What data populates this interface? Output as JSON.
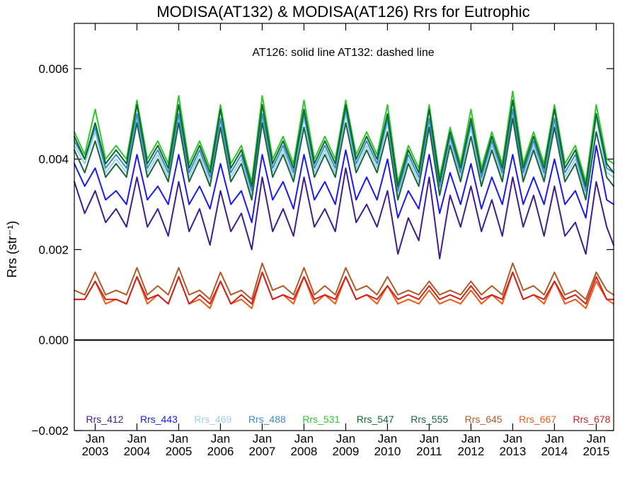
{
  "chart_data": {
    "type": "line",
    "title": "MODISA(AT132) & MODISA(AT126)  Rrs for Eutrophic",
    "annotation": "AT126: solid line   AT132: dashed line",
    "ylabel": "Rrs (str⁻¹)",
    "ylim": [
      -0.002,
      0.007
    ],
    "yticks": [
      -0.002,
      0.0,
      0.002,
      0.004,
      0.006
    ],
    "ytick_labels": [
      "−0.002",
      "0.000",
      "0.002",
      "0.004",
      "0.006"
    ],
    "xlim": [
      "2002-07",
      "2015-06"
    ],
    "xticks": [
      {
        "date": "2003-01",
        "month": "Jan",
        "year": "2003"
      },
      {
        "date": "2004-01",
        "month": "Jan",
        "year": "2004"
      },
      {
        "date": "2005-01",
        "month": "Jan",
        "year": "2005"
      },
      {
        "date": "2006-01",
        "month": "Jan",
        "year": "2006"
      },
      {
        "date": "2007-01",
        "month": "Jan",
        "year": "2007"
      },
      {
        "date": "2008-01",
        "month": "Jan",
        "year": "2008"
      },
      {
        "date": "2009-01",
        "month": "Jan",
        "year": "2009"
      },
      {
        "date": "2010-01",
        "month": "Jan",
        "year": "2010"
      },
      {
        "date": "2011-01",
        "month": "Jan",
        "year": "2011"
      },
      {
        "date": "2012-01",
        "month": "Jan",
        "year": "2012"
      },
      {
        "date": "2013-01",
        "month": "Jan",
        "year": "2013"
      },
      {
        "date": "2014-01",
        "month": "Jan",
        "year": "2014"
      },
      {
        "date": "2015-01",
        "month": "Jan",
        "year": "2015"
      }
    ],
    "zero_line": 0.0,
    "legend_position": "bottom",
    "x": [
      "2002-07",
      "2002-10",
      "2003-01",
      "2003-04",
      "2003-07",
      "2003-10",
      "2004-01",
      "2004-04",
      "2004-07",
      "2004-10",
      "2005-01",
      "2005-04",
      "2005-07",
      "2005-10",
      "2006-01",
      "2006-04",
      "2006-07",
      "2006-10",
      "2007-01",
      "2007-04",
      "2007-07",
      "2007-10",
      "2008-01",
      "2008-04",
      "2008-07",
      "2008-10",
      "2009-01",
      "2009-04",
      "2009-07",
      "2009-10",
      "2010-01",
      "2010-04",
      "2010-07",
      "2010-10",
      "2011-01",
      "2011-04",
      "2011-07",
      "2011-10",
      "2012-01",
      "2012-04",
      "2012-07",
      "2012-10",
      "2013-01",
      "2013-04",
      "2013-07",
      "2013-10",
      "2014-01",
      "2014-04",
      "2014-07",
      "2014-10",
      "2015-01",
      "2015-04",
      "2015-06"
    ],
    "series": [
      {
        "name": "Rrs_412",
        "color": "#3f1e8c",
        "values": [
          0.0035,
          0.0028,
          0.0033,
          0.0026,
          0.0029,
          0.0025,
          0.0036,
          0.0025,
          0.0029,
          0.0023,
          0.0035,
          0.0024,
          0.0029,
          0.0021,
          0.0033,
          0.0024,
          0.0028,
          0.002,
          0.0036,
          0.0024,
          0.0029,
          0.0023,
          0.0036,
          0.0025,
          0.0029,
          0.0024,
          0.0038,
          0.0026,
          0.003,
          0.0025,
          0.0033,
          0.0019,
          0.0027,
          0.0022,
          0.0036,
          0.0018,
          0.0032,
          0.0025,
          0.0034,
          0.0024,
          0.0031,
          0.0023,
          0.0036,
          0.0025,
          0.0032,
          0.0023,
          0.0034,
          0.0023,
          0.0026,
          0.0019,
          0.0035,
          0.0025,
          0.0021
        ]
      },
      {
        "name": "Rrs_443",
        "color": "#1a1aee",
        "values": [
          0.0039,
          0.0034,
          0.0038,
          0.0031,
          0.0033,
          0.003,
          0.0041,
          0.0031,
          0.0034,
          0.003,
          0.0041,
          0.003,
          0.0034,
          0.0029,
          0.0039,
          0.003,
          0.0033,
          0.0026,
          0.0041,
          0.0031,
          0.0035,
          0.0029,
          0.0041,
          0.0031,
          0.0035,
          0.003,
          0.0042,
          0.0031,
          0.0036,
          0.0031,
          0.004,
          0.0027,
          0.0033,
          0.0029,
          0.0041,
          0.0028,
          0.0037,
          0.003,
          0.0039,
          0.0029,
          0.0036,
          0.003,
          0.0041,
          0.003,
          0.0036,
          0.003,
          0.004,
          0.003,
          0.0033,
          0.0027,
          0.0043,
          0.0031,
          0.003
        ]
      },
      {
        "name": "Rrs_469",
        "color": "#9ecfe6",
        "values": [
          0.0043,
          0.0039,
          0.0046,
          0.0037,
          0.004,
          0.0037,
          0.0049,
          0.0037,
          0.0041,
          0.0036,
          0.0049,
          0.0036,
          0.0041,
          0.0035,
          0.0048,
          0.0036,
          0.004,
          0.0032,
          0.0049,
          0.0037,
          0.0042,
          0.0036,
          0.0049,
          0.0037,
          0.0042,
          0.0037,
          0.005,
          0.0038,
          0.0043,
          0.0038,
          0.0048,
          0.0032,
          0.004,
          0.0035,
          0.0048,
          0.0033,
          0.0044,
          0.0036,
          0.0047,
          0.0035,
          0.0043,
          0.0036,
          0.005,
          0.0036,
          0.0043,
          0.0036,
          0.0048,
          0.0036,
          0.004,
          0.0032,
          0.0049,
          0.0037,
          0.0036
        ]
      },
      {
        "name": "Rrs_488",
        "color": "#3a8ccf",
        "values": [
          0.0044,
          0.004,
          0.0047,
          0.0038,
          0.0041,
          0.0038,
          0.005,
          0.0038,
          0.0042,
          0.0037,
          0.005,
          0.0037,
          0.0042,
          0.0036,
          0.0049,
          0.0037,
          0.0041,
          0.0033,
          0.005,
          0.0038,
          0.0043,
          0.0037,
          0.005,
          0.0038,
          0.0043,
          0.0038,
          0.0051,
          0.0039,
          0.0044,
          0.0039,
          0.0049,
          0.0033,
          0.0041,
          0.0036,
          0.0049,
          0.0034,
          0.0045,
          0.0037,
          0.0048,
          0.0036,
          0.0044,
          0.0037,
          0.0051,
          0.0037,
          0.0044,
          0.0037,
          0.0049,
          0.0037,
          0.0041,
          0.0033,
          0.005,
          0.0038,
          0.0037
        ]
      },
      {
        "name": "Rrs_531",
        "color": "#2ec52e",
        "values": [
          0.0046,
          0.0041,
          0.0051,
          0.004,
          0.0043,
          0.004,
          0.0053,
          0.004,
          0.0044,
          0.0039,
          0.0054,
          0.0039,
          0.0044,
          0.0038,
          0.0052,
          0.0039,
          0.0043,
          0.0035,
          0.0054,
          0.004,
          0.0045,
          0.0039,
          0.0053,
          0.004,
          0.0045,
          0.004,
          0.0053,
          0.0041,
          0.0046,
          0.0041,
          0.0052,
          0.0035,
          0.0043,
          0.0038,
          0.0052,
          0.0036,
          0.0047,
          0.0039,
          0.0051,
          0.0038,
          0.0046,
          0.0039,
          0.0055,
          0.0039,
          0.0046,
          0.0039,
          0.0052,
          0.0039,
          0.0043,
          0.0035,
          0.0052,
          0.004,
          0.0039
        ]
      },
      {
        "name": "Rrs_547",
        "color": "#0b6a2b",
        "values": [
          0.0045,
          0.004,
          0.0048,
          0.0039,
          0.0042,
          0.0039,
          0.0052,
          0.0039,
          0.0043,
          0.0038,
          0.0052,
          0.0038,
          0.0043,
          0.0037,
          0.0051,
          0.0038,
          0.0042,
          0.0034,
          0.0052,
          0.0039,
          0.0044,
          0.0038,
          0.0051,
          0.0039,
          0.0044,
          0.0039,
          0.0052,
          0.004,
          0.0045,
          0.004,
          0.005,
          0.0034,
          0.0042,
          0.0037,
          0.0051,
          0.0035,
          0.0046,
          0.0038,
          0.0049,
          0.0037,
          0.0045,
          0.0038,
          0.0053,
          0.0038,
          0.0045,
          0.0038,
          0.0051,
          0.0038,
          0.0042,
          0.0034,
          0.005,
          0.0039,
          0.0037
        ]
      },
      {
        "name": "Rrs_555",
        "color": "#17663a",
        "values": [
          0.0042,
          0.0037,
          0.0044,
          0.0036,
          0.0039,
          0.0036,
          0.0048,
          0.0036,
          0.004,
          0.0035,
          0.0048,
          0.0035,
          0.004,
          0.0034,
          0.0047,
          0.0035,
          0.0039,
          0.0031,
          0.0048,
          0.0036,
          0.0041,
          0.0035,
          0.0047,
          0.0036,
          0.0041,
          0.0036,
          0.0048,
          0.0037,
          0.0042,
          0.0037,
          0.0046,
          0.0031,
          0.0039,
          0.0034,
          0.0047,
          0.0032,
          0.0043,
          0.0035,
          0.0045,
          0.0034,
          0.0042,
          0.0035,
          0.0049,
          0.0035,
          0.0042,
          0.0035,
          0.0047,
          0.0035,
          0.0039,
          0.0031,
          0.0046,
          0.0036,
          0.0034
        ]
      },
      {
        "name": "Rrs_645",
        "color": "#b05a28",
        "values": [
          0.0011,
          0.001,
          0.0015,
          0.001,
          0.0011,
          0.001,
          0.0016,
          0.001,
          0.0012,
          0.001,
          0.0016,
          0.001,
          0.0011,
          0.0009,
          0.0015,
          0.001,
          0.0011,
          0.0009,
          0.0017,
          0.0011,
          0.0012,
          0.001,
          0.0016,
          0.001,
          0.0012,
          0.001,
          0.0016,
          0.0011,
          0.0012,
          0.001,
          0.0014,
          0.001,
          0.0011,
          0.001,
          0.0013,
          0.001,
          0.0011,
          0.001,
          0.0013,
          0.001,
          0.0012,
          0.001,
          0.0017,
          0.0011,
          0.0012,
          0.001,
          0.0015,
          0.001,
          0.0011,
          0.0009,
          0.0015,
          0.0011,
          0.001
        ]
      },
      {
        "name": "Rrs_667",
        "color": "#f05a14",
        "values": [
          0.0009,
          0.0009,
          0.0013,
          0.0008,
          0.0009,
          0.0008,
          0.0014,
          0.0008,
          0.001,
          0.0008,
          0.0014,
          0.0008,
          0.0009,
          0.0007,
          0.0013,
          0.0008,
          0.0009,
          0.0007,
          0.0015,
          0.0009,
          0.001,
          0.0008,
          0.0014,
          0.0008,
          0.001,
          0.0008,
          0.0014,
          0.0009,
          0.001,
          0.0008,
          0.0012,
          0.0008,
          0.0009,
          0.0008,
          0.0011,
          0.0008,
          0.0009,
          0.0008,
          0.0011,
          0.0008,
          0.001,
          0.0008,
          0.0015,
          0.0009,
          0.001,
          0.0008,
          0.0013,
          0.0008,
          0.0009,
          0.0007,
          0.0013,
          0.0009,
          0.0008
        ]
      },
      {
        "name": "Rrs_678",
        "color": "#d42020",
        "values": [
          0.0009,
          0.0009,
          0.0013,
          0.0009,
          0.0009,
          0.0008,
          0.0014,
          0.0009,
          0.001,
          0.0008,
          0.0014,
          0.0008,
          0.001,
          0.0008,
          0.0013,
          0.0008,
          0.001,
          0.0008,
          0.0015,
          0.0009,
          0.001,
          0.0009,
          0.0014,
          0.0009,
          0.001,
          0.0009,
          0.0014,
          0.0009,
          0.001,
          0.0009,
          0.0012,
          0.0009,
          0.001,
          0.0009,
          0.0012,
          0.0009,
          0.001,
          0.0009,
          0.0012,
          0.0009,
          0.001,
          0.0009,
          0.0015,
          0.0009,
          0.001,
          0.0009,
          0.0013,
          0.0009,
          0.001,
          0.0008,
          0.0014,
          0.0009,
          0.0009
        ]
      }
    ]
  }
}
